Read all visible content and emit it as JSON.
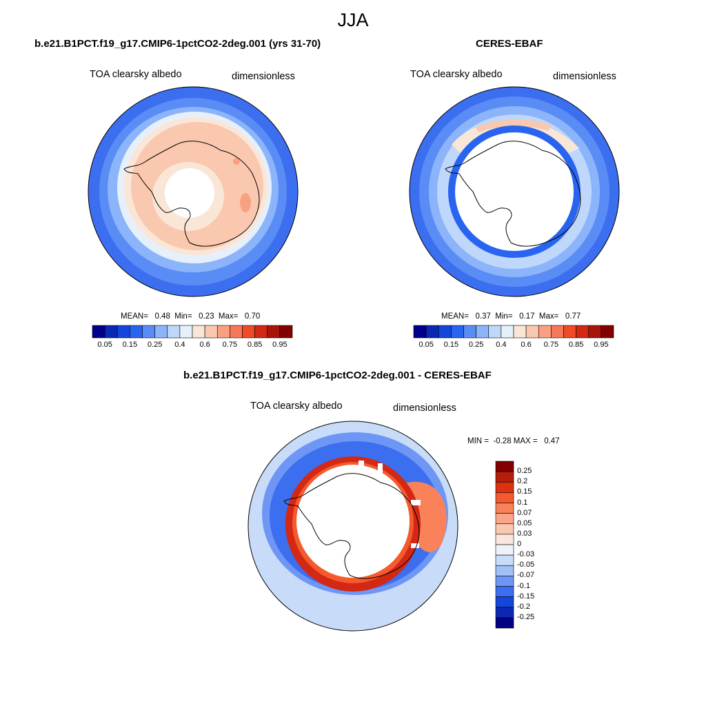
{
  "title": "JJA",
  "panels": {
    "model": {
      "title": "b.e21.B1PCT.f19_g17.CMIP6-1pctCO2-2deg.001 (yrs 31-70)",
      "left_label": "TOA clearsky albedo",
      "right_label": "dimensionless",
      "stats": "MEAN=   0.48  Min=   0.23  Max=   0.70"
    },
    "obs": {
      "title": "CERES-EBAF",
      "left_label": "TOA clearsky albedo",
      "right_label": "dimensionless",
      "stats": "MEAN=   0.37  Min=   0.17  Max=   0.77"
    },
    "diff": {
      "title": "b.e21.B1PCT.f19_g17.CMIP6-1pctCO2-2deg.001 - CERES-EBAF",
      "left_label": "TOA clearsky albedo",
      "right_label": "dimensionless",
      "stats": "MIN =  -0.28 MAX =   0.47"
    }
  },
  "colorbars": {
    "albedo": {
      "labels": [
        "0.05",
        "0.15",
        "0.25",
        "0.4",
        "0.6",
        "0.75",
        "0.85",
        "0.95"
      ],
      "colors": [
        "#00008c",
        "#0a28b4",
        "#1446dc",
        "#2864f0",
        "#5a8cf5",
        "#8cb4fa",
        "#bed7fa",
        "#e6f0fa",
        "#fae6d7",
        "#fac8af",
        "#faa082",
        "#f5785a",
        "#f04b28",
        "#d22814",
        "#aa140a",
        "#820000"
      ]
    },
    "diff": {
      "labels": [
        "0.25",
        "0.2",
        "0.15",
        "0.1",
        "0.07",
        "0.05",
        "0.03",
        "0",
        "-0.03",
        "-0.05",
        "-0.07",
        "-0.1",
        "-0.15",
        "-0.2",
        "-0.25"
      ],
      "colors_top_to_bottom": [
        "#820000",
        "#b41e0a",
        "#dc320f",
        "#f55a2d",
        "#fa825a",
        "#faa587",
        "#fac8af",
        "#fae6dc",
        "#eef2fa",
        "#c8dcfa",
        "#a0c0f8",
        "#6e96f5",
        "#3c6ef0",
        "#1446dc",
        "#0a28b4",
        "#000082"
      ]
    }
  },
  "chart_data": [
    {
      "type": "heatmap",
      "projection": "south polar stereographic",
      "title": "b.e21.B1PCT.f19_g17.CMIP6-1pctCO2-2deg.001 (yrs 31-70)",
      "variable": "TOA clearsky albedo",
      "units": "dimensionless",
      "mean": 0.48,
      "min": 0.23,
      "max": 0.7,
      "levels": [
        0.05,
        0.1,
        0.15,
        0.2,
        0.25,
        0.3,
        0.4,
        0.5,
        0.6,
        0.7,
        0.75,
        0.8,
        0.85,
        0.9,
        0.95
      ]
    },
    {
      "type": "heatmap",
      "projection": "south polar stereographic",
      "title": "CERES-EBAF",
      "variable": "TOA clearsky albedo",
      "units": "dimensionless",
      "mean": 0.37,
      "min": 0.17,
      "max": 0.77,
      "levels": [
        0.05,
        0.1,
        0.15,
        0.2,
        0.25,
        0.3,
        0.4,
        0.5,
        0.6,
        0.7,
        0.75,
        0.8,
        0.85,
        0.9,
        0.95
      ]
    },
    {
      "type": "heatmap",
      "projection": "south polar stereographic",
      "title": "b.e21.B1PCT.f19_g17.CMIP6-1pctCO2-2deg.001 - CERES-EBAF",
      "variable": "TOA clearsky albedo",
      "units": "dimensionless",
      "min": -0.28,
      "max": 0.47,
      "levels": [
        -0.25,
        -0.2,
        -0.15,
        -0.1,
        -0.07,
        -0.05,
        -0.03,
        0,
        0.03,
        0.05,
        0.07,
        0.1,
        0.15,
        0.2,
        0.25
      ]
    }
  ]
}
